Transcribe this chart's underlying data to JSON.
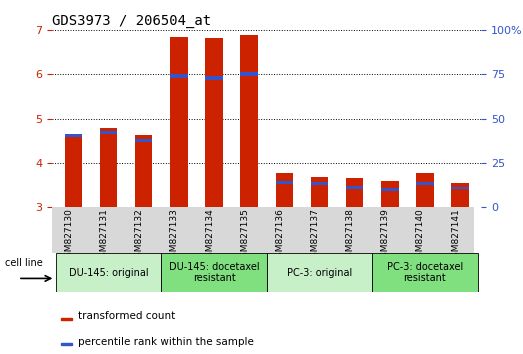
{
  "title": "GDS3973 / 206504_at",
  "samples": [
    "GSM827130",
    "GSM827131",
    "GSM827132",
    "GSM827133",
    "GSM827134",
    "GSM827135",
    "GSM827136",
    "GSM827137",
    "GSM827138",
    "GSM827139",
    "GSM827140",
    "GSM827141"
  ],
  "red_values": [
    4.65,
    4.78,
    4.63,
    6.85,
    6.82,
    6.88,
    3.77,
    3.68,
    3.65,
    3.58,
    3.77,
    3.55
  ],
  "blue_starts": [
    4.58,
    4.65,
    4.47,
    5.92,
    5.88,
    5.96,
    3.52,
    3.5,
    3.42,
    3.36,
    3.5,
    3.4
  ],
  "blue_heights": [
    0.075,
    0.075,
    0.075,
    0.09,
    0.09,
    0.09,
    0.065,
    0.065,
    0.065,
    0.065,
    0.065,
    0.065
  ],
  "ymin": 3.0,
  "ymax": 7.0,
  "yticks": [
    3,
    4,
    5,
    6,
    7
  ],
  "right_yticks": [
    0,
    25,
    50,
    75,
    100
  ],
  "right_yticklabels": [
    "0",
    "25",
    "50",
    "75",
    "100%"
  ],
  "groups": [
    {
      "label": "DU-145: original",
      "start": 0,
      "end": 3,
      "color": "#c8f0c8"
    },
    {
      "label": "DU-145: docetaxel\nresistant",
      "start": 3,
      "end": 6,
      "color": "#80e080"
    },
    {
      "label": "PC-3: original",
      "start": 6,
      "end": 9,
      "color": "#c8f0c8"
    },
    {
      "label": "PC-3: docetaxel\nresistant",
      "start": 9,
      "end": 12,
      "color": "#80e080"
    }
  ],
  "cell_line_label": "cell line",
  "bar_width": 0.5,
  "red_color": "#cc2200",
  "blue_color": "#3355cc",
  "bg_color": "#ffffff",
  "grid_color": "#000000",
  "left_tick_color": "#cc2200",
  "right_tick_color": "#3355cc",
  "legend_red": "transformed count",
  "legend_blue": "percentile rank within the sample"
}
